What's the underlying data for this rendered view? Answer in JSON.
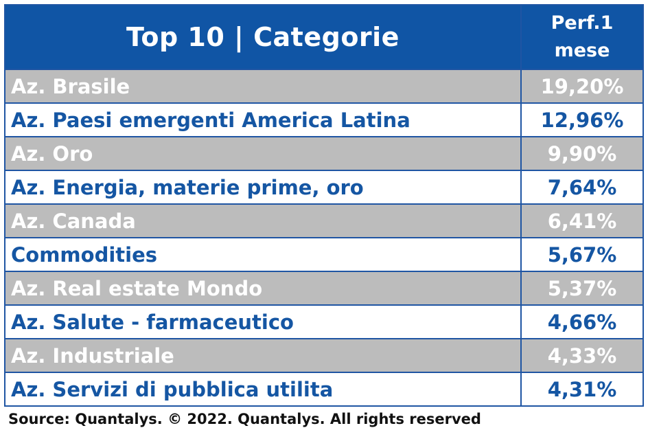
{
  "chart_data": {
    "type": "table",
    "title": "Top 10 | Categorie",
    "columns": [
      "Top 10 | Categorie",
      "Perf.1 mese"
    ],
    "value_header_lines": [
      "Perf.1",
      "mese"
    ],
    "rows": [
      {
        "category": "Az. Brasile",
        "value": "19,20%"
      },
      {
        "category": "Az. Paesi emergenti America Latina",
        "value": "12,96%"
      },
      {
        "category": "Az. Oro",
        "value": "9,90%"
      },
      {
        "category": "Az. Energia, materie prime, oro",
        "value": "7,64%"
      },
      {
        "category": "Az. Canada",
        "value": "6,41%"
      },
      {
        "category": "Commodities",
        "value": "5,67%"
      },
      {
        "category": "Az. Real estate Mondo",
        "value": "5,37%"
      },
      {
        "category": "Az. Salute - farmaceutico",
        "value": "4,66%"
      },
      {
        "category": "Az. Industriale",
        "value": "4,33%"
      },
      {
        "category": "Az. Servizi di pubblica utilita",
        "value": "4,31%"
      }
    ],
    "source": "Source: Quantalys. © 2022. Quantalys. All rights reserved"
  },
  "colors": {
    "header_bg": "#1055a5",
    "header_text": "#ffffff",
    "gray_row_bg": "#bcbcbc",
    "gray_row_text": "#ffffff",
    "white_row_text": "#1556a3",
    "border": "#1f55a3"
  }
}
